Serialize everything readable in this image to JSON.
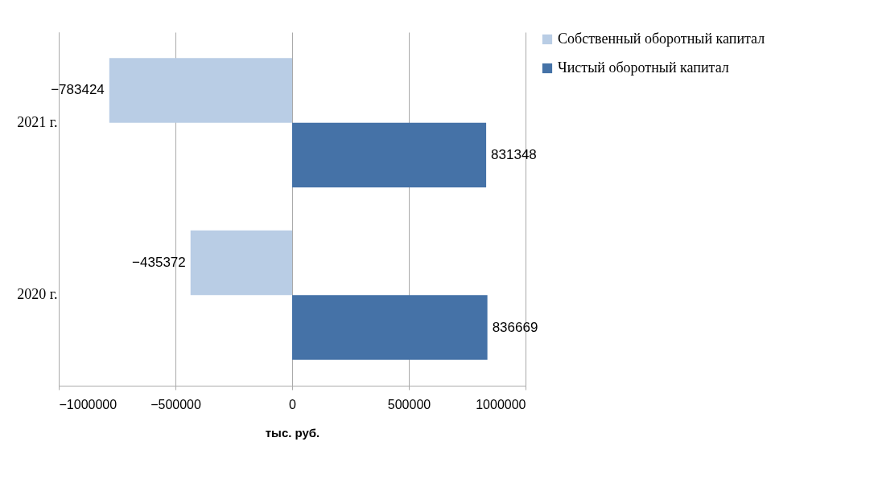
{
  "chart_data": {
    "type": "bar",
    "orientation": "horizontal",
    "categories": [
      "2021 г.",
      "2020 г."
    ],
    "series": [
      {
        "name": "Собственный оборотный капитал",
        "color": "#b9cde5",
        "values": [
          -783424,
          -435372
        ]
      },
      {
        "name": "Чистый оборотный капитал",
        "color": "#4572a7",
        "values": [
          831348,
          836669
        ]
      }
    ],
    "xlim": [
      -1000000,
      1000000
    ],
    "xticks": [
      -1000000,
      -500000,
      0,
      500000,
      1000000
    ],
    "xlabel": "тыс. руб.",
    "grid": "x",
    "legend": "right",
    "data_labels": true
  }
}
